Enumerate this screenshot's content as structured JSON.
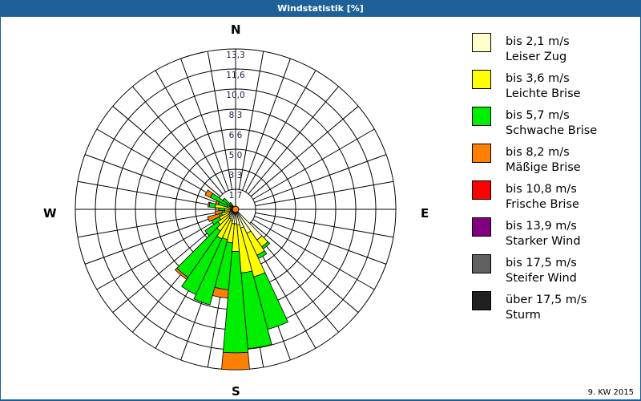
{
  "window": {
    "title": "Windstatistik [%]"
  },
  "footer": {
    "week": "9. KW 2015"
  },
  "compass": {
    "n": "N",
    "e": "E",
    "s": "S",
    "w": "W"
  },
  "legend": [
    {
      "color": "#ffffcc",
      "line1": "bis 2,1 m/s",
      "line2": "Leiser Zug"
    },
    {
      "color": "#ffff00",
      "line1": "bis 3,6 m/s",
      "line2": "Leichte Brise"
    },
    {
      "color": "#00ee00",
      "line1": "bis 5,7 m/s",
      "line2": "Schwache Brise"
    },
    {
      "color": "#ff8000",
      "line1": "bis 8,2 m/s",
      "line2": "Mäßige Brise"
    },
    {
      "color": "#ff0000",
      "line1": "bis 10,8 m/s",
      "line2": "Frische Brise"
    },
    {
      "color": "#800080",
      "line1": "bis 13,9 m/s",
      "line2": "Starker Wind"
    },
    {
      "color": "#606060",
      "line1": "bis 17,5 m/s",
      "line2": "Steifer Wind"
    },
    {
      "color": "#202020",
      "line1": "über 17,5 m/s",
      "line2": "Sturm"
    }
  ],
  "chart_data": {
    "type": "windrose",
    "title": "Windstatistik [%]",
    "subtitle": "9. KW 2015",
    "radial_ticks": [
      "1,7",
      "3,3",
      "5,0",
      "6,6",
      "8,3",
      "10,0",
      "11,6",
      "13,3"
    ],
    "radial_max": 13.3,
    "sector_width_deg": 10,
    "series_names": [
      "bis 2,1 m/s",
      "bis 3,6 m/s",
      "bis 5,7 m/s",
      "bis 8,2 m/s"
    ],
    "series_colors": [
      "#ffffcc",
      "#ffff00",
      "#00ee00",
      "#ff8000"
    ],
    "directions": [
      {
        "deg": 140,
        "values": [
          3.1,
          0.7,
          0.2,
          0
        ]
      },
      {
        "deg": 150,
        "values": [
          2.2,
          2.0,
          0.3,
          0
        ]
      },
      {
        "deg": 160,
        "values": [
          1.6,
          4.2,
          4.5,
          0
        ]
      },
      {
        "deg": 170,
        "values": [
          1.3,
          4.0,
          6.3,
          0
        ]
      },
      {
        "deg": 180,
        "values": [
          1.2,
          2.3,
          8.4,
          1.4
        ]
      },
      {
        "deg": 190,
        "values": [
          1.2,
          1.6,
          3.9,
          0.7
        ]
      },
      {
        "deg": 200,
        "values": [
          1.0,
          1.6,
          5.6,
          0
        ]
      },
      {
        "deg": 210,
        "values": [
          0.9,
          1.8,
          5.1,
          0
        ]
      },
      {
        "deg": 220,
        "values": [
          0.8,
          1.4,
          4.7,
          0.2
        ]
      },
      {
        "deg": 230,
        "values": [
          0.7,
          1.1,
          1.3,
          0
        ]
      },
      {
        "deg": 240,
        "values": [
          0.6,
          0.9,
          0.7,
          0
        ]
      },
      {
        "deg": 250,
        "values": [
          0.5,
          0.7,
          0.2,
          1.0
        ]
      },
      {
        "deg": 260,
        "values": [
          0.4,
          0.5,
          0.2,
          0.6
        ]
      },
      {
        "deg": 270,
        "values": [
          0.3,
          0.6,
          0.5,
          0
        ]
      },
      {
        "deg": 280,
        "values": [
          0.3,
          1.4,
          0.5,
          0.1
        ]
      },
      {
        "deg": 290,
        "values": [
          0.3,
          0.4,
          0.8,
          0.2
        ]
      },
      {
        "deg": 300,
        "values": [
          0.2,
          0.3,
          1.8,
          0.5
        ]
      },
      {
        "deg": 310,
        "values": [
          0.2,
          0.2,
          0.9,
          0
        ]
      },
      {
        "deg": 320,
        "values": [
          0.2,
          0.2,
          0.3,
          0
        ]
      }
    ]
  }
}
